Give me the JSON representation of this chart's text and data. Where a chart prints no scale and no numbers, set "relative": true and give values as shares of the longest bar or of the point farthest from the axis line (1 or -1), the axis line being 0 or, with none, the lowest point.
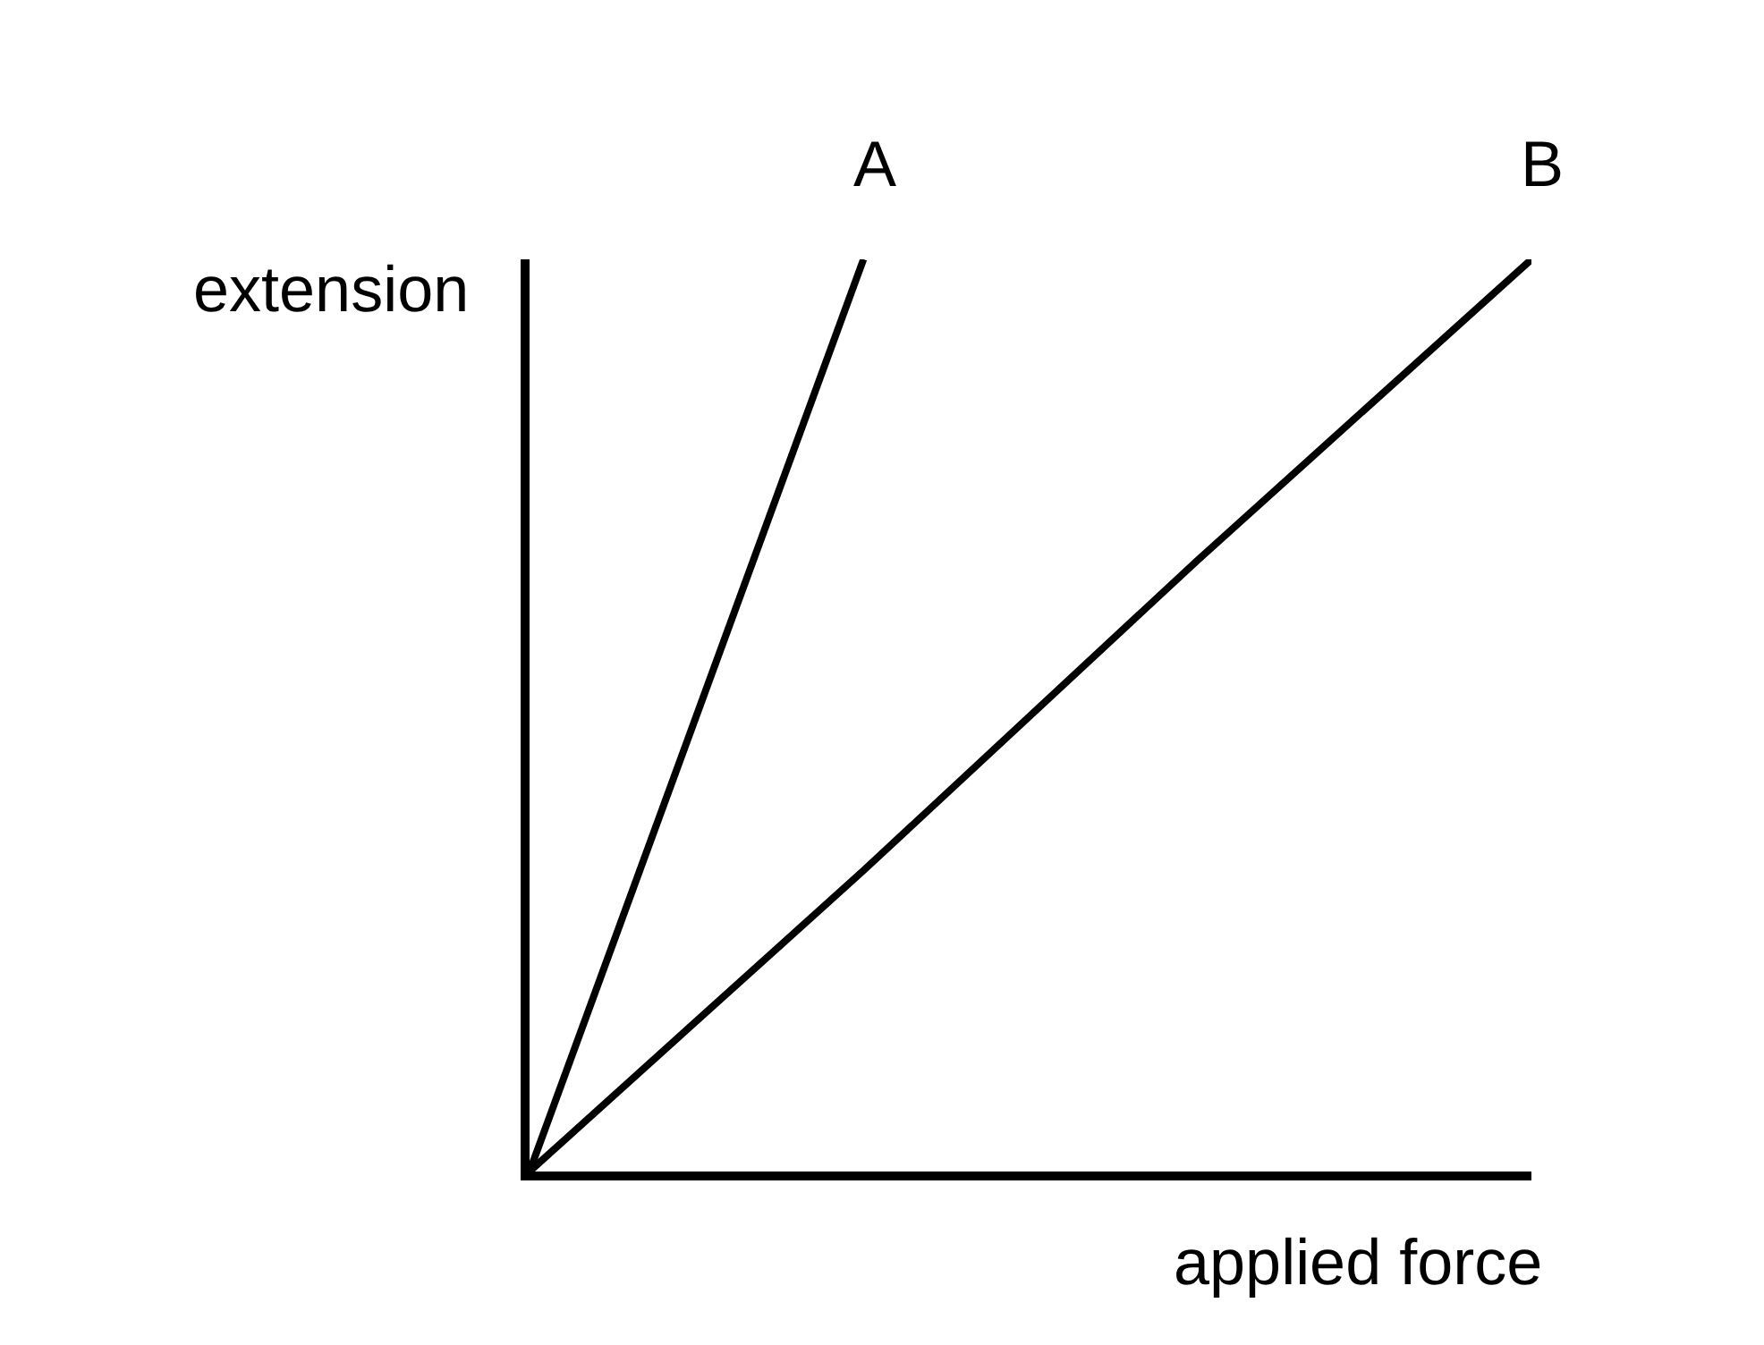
{
  "chart_data": {
    "type": "line",
    "relative": true,
    "xlabel": "applied force",
    "ylabel": "extension",
    "line_style": "solid",
    "categories": [
      null,
      null,
      null,
      null
    ],
    "series": [
      {
        "name": "A",
        "color": "#000000",
        "values": [
          0,
          1,
          null,
          null
        ]
      },
      {
        "name": "B",
        "color": "#000000",
        "values": [
          0,
          0.33,
          0.67,
          1
        ]
      }
    ]
  }
}
